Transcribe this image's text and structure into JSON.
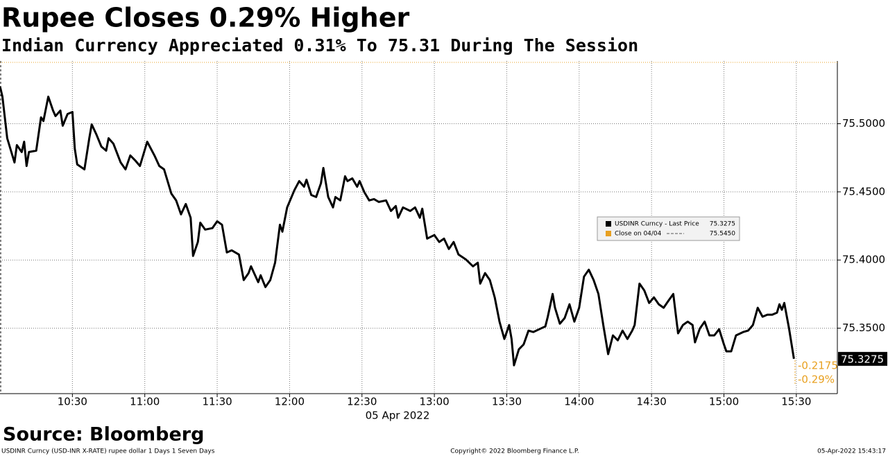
{
  "chart_data": {
    "type": "line",
    "title": "Rupee Closes 0.29% Higher",
    "subtitle": "Indian Currency Appreciated 0.31% To 75.31 During The Session",
    "xlabel": "05 Apr 2022",
    "xlim": [
      "10:00",
      "15:47"
    ],
    "xticks": [
      "10:30",
      "11:00",
      "11:30",
      "12:00",
      "12:30",
      "13:00",
      "13:30",
      "14:00",
      "14:30",
      "15:00",
      "15:30"
    ],
    "ylim": [
      75.302,
      75.546
    ],
    "yticks": [
      {
        "value": 75.35,
        "label": "75.3500"
      },
      {
        "value": 75.4,
        "label": "75.4000"
      },
      {
        "value": 75.45,
        "label": "75.4500"
      },
      {
        "value": 75.5,
        "label": "75.5000"
      }
    ],
    "grid": true,
    "x": [
      "10:00",
      "10:01",
      "10:03",
      "10:06",
      "10:07",
      "10:09",
      "10:10",
      "10:11",
      "10:12",
      "10:15",
      "10:17",
      "10:18",
      "10:20",
      "10:22",
      "10:23",
      "10:25",
      "10:26",
      "10:28",
      "10:30",
      "10:31",
      "10:32",
      "10:35",
      "10:37",
      "10:38",
      "10:40",
      "10:42",
      "10:44",
      "10:45",
      "10:47",
      "10:50",
      "10:52",
      "10:54",
      "10:56",
      "10:58",
      "11:01",
      "11:04",
      "11:06",
      "11:08",
      "11:11",
      "11:13",
      "11:15",
      "11:17",
      "11:19",
      "11:20",
      "11:22",
      "11:23",
      "11:25",
      "11:28",
      "11:30",
      "11:32",
      "11:34",
      "11:36",
      "11:39",
      "11:41",
      "11:43",
      "11:44",
      "11:47",
      "11:48",
      "11:50",
      "11:52",
      "11:54",
      "11:56",
      "11:57",
      "11:59",
      "12:02",
      "12:04",
      "12:06",
      "12:07",
      "12:09",
      "12:11",
      "12:13",
      "12:14",
      "12:16",
      "12:18",
      "12:19",
      "12:21",
      "12:23",
      "12:24",
      "12:26",
      "12:28",
      "12:29",
      "12:31",
      "12:33",
      "12:35",
      "12:37",
      "12:40",
      "12:42",
      "12:44",
      "12:45",
      "12:47",
      "12:50",
      "12:52",
      "12:54",
      "12:55",
      "12:57",
      "13:00",
      "13:02",
      "13:04",
      "13:06",
      "13:08",
      "13:10",
      "13:13",
      "13:16",
      "13:18",
      "13:19",
      "13:21",
      "13:23",
      "13:25",
      "13:27",
      "13:29",
      "13:31",
      "13:32",
      "13:33",
      "13:35",
      "13:37",
      "13:39",
      "13:41",
      "13:44",
      "13:46",
      "13:47",
      "13:49",
      "13:50",
      "13:52",
      "13:54",
      "13:56",
      "13:58",
      "14:00",
      "14:02",
      "14:04",
      "14:06",
      "14:08",
      "14:10",
      "14:12",
      "14:14",
      "14:16",
      "14:18",
      "14:20",
      "14:22",
      "14:23",
      "14:25",
      "14:27",
      "14:29",
      "14:31",
      "14:33",
      "14:35",
      "14:37",
      "14:39",
      "14:41",
      "14:43",
      "14:45",
      "14:47",
      "14:48",
      "14:50",
      "14:52",
      "14:54",
      "14:56",
      "14:58",
      "15:00",
      "15:01",
      "15:03",
      "15:05",
      "15:08",
      "15:10",
      "15:12",
      "15:14",
      "15:16",
      "15:18",
      "15:20",
      "15:22",
      "15:23",
      "15:24",
      "15:25",
      "15:27",
      "15:29"
    ],
    "series": [
      {
        "name": "USDINR Curncy - Last Price",
        "color": "#000000",
        "values": [
          75.5274,
          75.5198,
          75.4893,
          75.4716,
          75.4843,
          75.4792,
          75.4868,
          75.469,
          75.4792,
          75.4802,
          75.5046,
          75.502,
          75.5198,
          75.5096,
          75.5056,
          75.5096,
          75.4985,
          75.5071,
          75.5086,
          75.4817,
          75.4701,
          75.4665,
          75.4893,
          75.4995,
          75.4919,
          75.4832,
          75.4802,
          75.4893,
          75.4853,
          75.4716,
          75.4665,
          75.4767,
          75.4731,
          75.469,
          75.4868,
          75.4767,
          75.469,
          75.4665,
          75.4487,
          75.4437,
          75.4335,
          75.4411,
          75.431,
          75.403,
          75.4132,
          75.4274,
          75.4223,
          75.4234,
          75.4284,
          75.4259,
          75.4056,
          75.4071,
          75.404,
          75.3853,
          75.3904,
          75.3954,
          75.3838,
          75.3888,
          75.3802,
          75.3853,
          75.398,
          75.4259,
          75.4208,
          75.4386,
          75.4513,
          75.4579,
          75.4538,
          75.4589,
          75.4477,
          75.4462,
          75.4563,
          75.4675,
          75.4462,
          75.4386,
          75.4462,
          75.4437,
          75.4614,
          75.4579,
          75.4599,
          75.4538,
          75.4579,
          75.4497,
          75.4437,
          75.4447,
          75.4426,
          75.4437,
          75.436,
          75.4396,
          75.431,
          75.4386,
          75.436,
          75.4386,
          75.431,
          75.4376,
          75.4157,
          75.4183,
          75.4132,
          75.4157,
          75.4081,
          75.4132,
          75.404,
          75.4005,
          75.3954,
          75.398,
          75.3827,
          75.3904,
          75.3853,
          75.3726,
          75.3548,
          75.3421,
          75.3523,
          75.3421,
          75.3228,
          75.3345,
          75.3381,
          75.3482,
          75.3472,
          75.3497,
          75.3513,
          75.3584,
          75.3751,
          75.365,
          75.3533,
          75.3574,
          75.3675,
          75.3548,
          75.365,
          75.3878,
          75.3929,
          75.3853,
          75.3751,
          75.3523,
          75.331,
          75.3447,
          75.3411,
          75.3482,
          75.3421,
          75.3482,
          75.3523,
          75.3827,
          75.3777,
          75.3685,
          75.3726,
          75.3675,
          75.365,
          75.3701,
          75.3751,
          75.3462,
          75.3523,
          75.3548,
          75.3523,
          75.3396,
          75.3497,
          75.3548,
          75.3447,
          75.3447,
          75.3492,
          75.3381,
          75.333,
          75.333,
          75.3447,
          75.3472,
          75.3482,
          75.3523,
          75.365,
          75.3584,
          75.3599,
          75.3599,
          75.3614,
          75.3675,
          75.3635,
          75.3685,
          75.3497,
          75.3275
        ]
      }
    ],
    "last_price": 75.3275,
    "reference": {
      "name": "Close on 04/04",
      "value": 75.545,
      "label": "75.5450",
      "color": "#e8a020"
    },
    "change": -0.2175,
    "change_pct": {
      "value": -0.29,
      "label": "-0.29%"
    },
    "source": "Source: Bloomberg",
    "footer_left": "USDINR Curncy (USD-INR X-RATE) rupee dollar 1 Days 1 Seven Days",
    "footer_center": "Copyright© 2022 Bloomberg Finance L.P.",
    "footer_right": "05-Apr-2022 15:43:17"
  }
}
